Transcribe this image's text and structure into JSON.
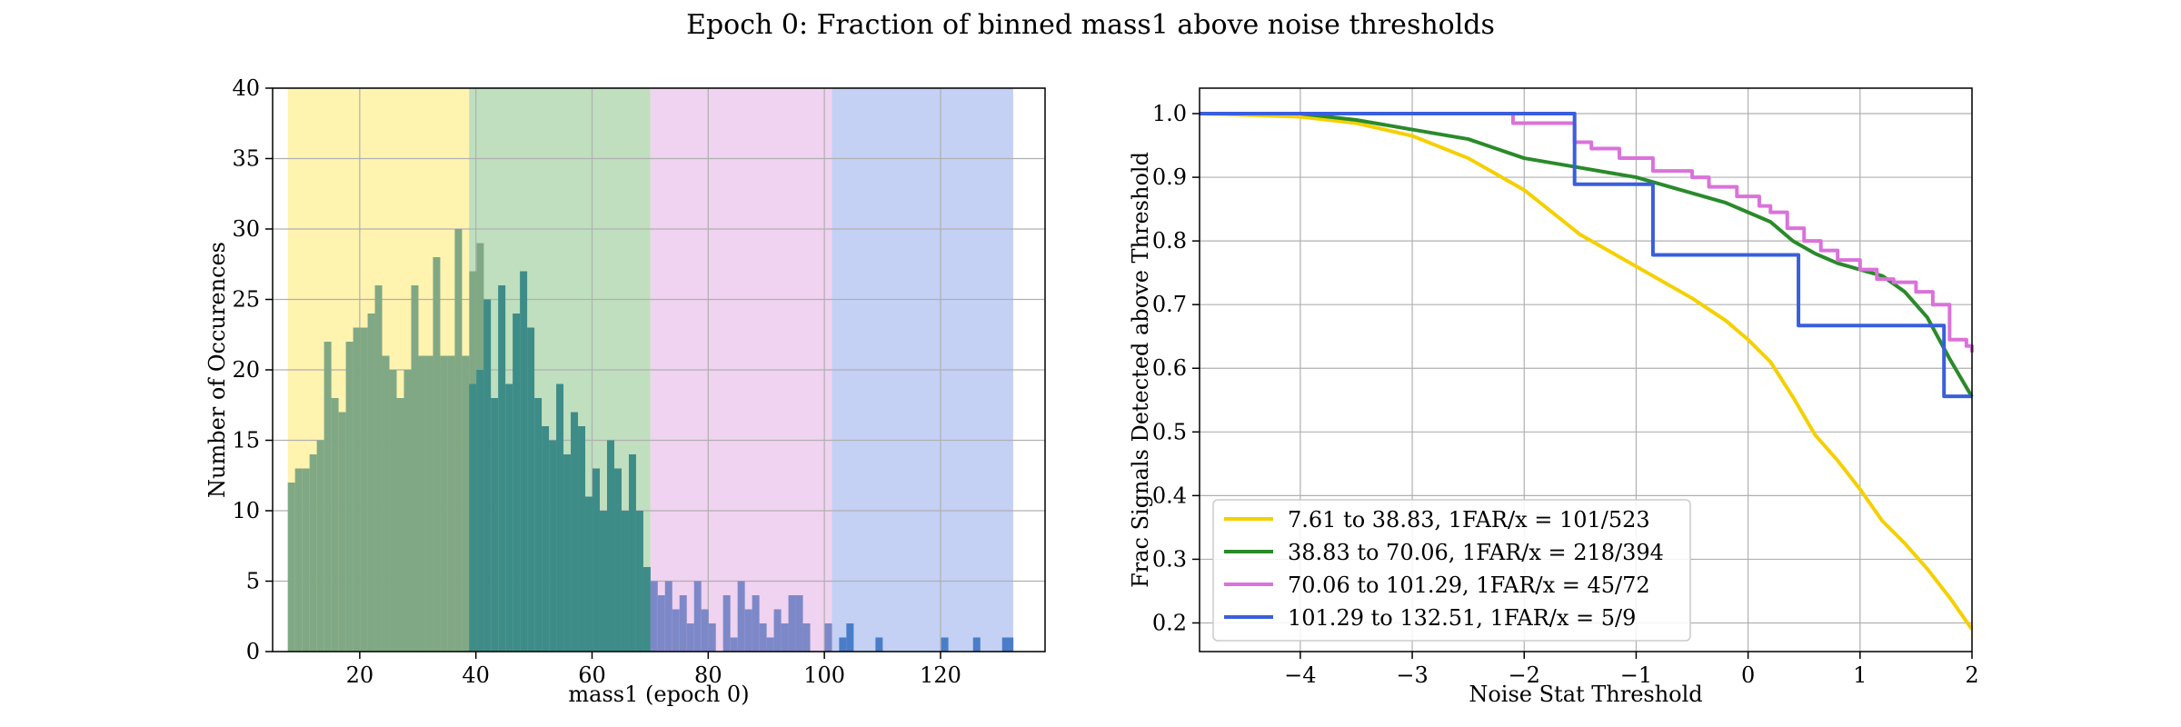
{
  "suptitle": "Epoch 0: Fraction of binned mass1 above noise thresholds",
  "chart_data": [
    {
      "type": "bar",
      "xlabel": "mass1 (epoch 0)",
      "ylabel": "Number of Occurences",
      "xlim": [
        5,
        138
      ],
      "ylim": [
        0,
        40
      ],
      "xticks": [
        20,
        40,
        60,
        80,
        100,
        120
      ],
      "yticks": [
        0,
        5,
        10,
        15,
        20,
        25,
        30,
        35,
        40
      ],
      "grid": true,
      "bin_width": 1.25,
      "bands": [
        {
          "x0": 7.61,
          "x1": 38.83,
          "color": "#fff3b0"
        },
        {
          "x0": 38.83,
          "x1": 70.06,
          "color": "#bfdfbf"
        },
        {
          "x0": 70.06,
          "x1": 101.29,
          "color": "#f0d3f0"
        },
        {
          "x0": 101.29,
          "x1": 132.51,
          "color": "#c4d0f4"
        }
      ],
      "series": [
        {
          "color": "#80a884",
          "x0": 7.61,
          "values": [
            12,
            13,
            13,
            14,
            15,
            22,
            18,
            17,
            22,
            23,
            23,
            24,
            26,
            21,
            20,
            18,
            20,
            26,
            21,
            21,
            28,
            21,
            21,
            30,
            21,
            27,
            29
          ]
        },
        {
          "color": "#3e8c88",
          "x0": 38.83,
          "values": [
            19,
            20,
            25,
            18,
            26,
            19,
            24,
            27,
            23,
            18,
            16,
            15,
            19,
            14,
            17,
            16,
            11,
            13,
            10,
            15,
            13,
            10,
            14,
            10,
            6
          ]
        },
        {
          "color": "#7d88c8",
          "x0": 70.06,
          "values": [
            5,
            4,
            5,
            3,
            4,
            2,
            5,
            3,
            2,
            0,
            4,
            1,
            5,
            3,
            4,
            2,
            1,
            3,
            2,
            4,
            4,
            2,
            0,
            0,
            2
          ]
        },
        {
          "color": "#4a7dc8",
          "x0": 101.29,
          "values": [
            0,
            1,
            2,
            0,
            0,
            0,
            0,
            0,
            0,
            0,
            0,
            0,
            0,
            0,
            0,
            0,
            0,
            0,
            0,
            0,
            0,
            0,
            0,
            0,
            0
          ]
        }
      ],
      "extra_bars": [
        {
          "x": 108.8,
          "value": 1
        },
        {
          "x": 120.1,
          "value": 1
        },
        {
          "x": 125.6,
          "value": 1
        },
        {
          "x": 130.6,
          "value": 1
        },
        {
          "x": 131.3,
          "value": 1
        }
      ]
    },
    {
      "type": "line",
      "xlabel": "Noise Stat Threshold",
      "ylabel": "Frac Signals Detected above Threshold",
      "xlim": [
        -4.9,
        2
      ],
      "ylim": [
        0.155,
        1.04
      ],
      "xticks": [
        -4,
        -3,
        -2,
        -1,
        0,
        1,
        2
      ],
      "xtick_labels": [
        "−4",
        "−3",
        "−2",
        "−1",
        "0",
        "1",
        "2"
      ],
      "yticks": [
        0.2,
        0.3,
        0.4,
        0.5,
        0.6,
        0.7,
        0.8,
        0.9,
        1.0
      ],
      "ytick_labels": [
        "0.2",
        "0.3",
        "0.4",
        "0.5",
        "0.6",
        "0.7",
        "0.8",
        "0.9",
        "1.0"
      ],
      "grid": true,
      "legend": "lower-left",
      "series": [
        {
          "name": "7.61 to 38.83, 1FAR/x = 101/523",
          "color": "#f5d000",
          "step": false,
          "x": [
            -4.9,
            -4.5,
            -4.0,
            -3.5,
            -3.0,
            -2.5,
            -2.0,
            -1.5,
            -1.0,
            -0.5,
            -0.2,
            0.0,
            0.2,
            0.4,
            0.6,
            0.8,
            1.0,
            1.2,
            1.4,
            1.6,
            1.8,
            2.0
          ],
          "y": [
            1.0,
            0.998,
            0.995,
            0.985,
            0.965,
            0.93,
            0.88,
            0.81,
            0.76,
            0.71,
            0.675,
            0.645,
            0.61,
            0.555,
            0.495,
            0.455,
            0.41,
            0.36,
            0.325,
            0.285,
            0.24,
            0.19
          ]
        },
        {
          "name": "38.83 to 70.06, 1FAR/x = 218/394",
          "color": "#2a8a2a",
          "step": false,
          "x": [
            -4.9,
            -4.0,
            -3.5,
            -3.0,
            -2.5,
            -2.0,
            -1.5,
            -1.0,
            -0.5,
            -0.2,
            0.0,
            0.2,
            0.4,
            0.6,
            0.8,
            1.0,
            1.2,
            1.4,
            1.6,
            1.8,
            2.0
          ],
          "y": [
            1.0,
            1.0,
            0.99,
            0.975,
            0.96,
            0.93,
            0.915,
            0.9,
            0.875,
            0.86,
            0.845,
            0.83,
            0.8,
            0.78,
            0.765,
            0.755,
            0.745,
            0.72,
            0.68,
            0.615,
            0.555
          ]
        },
        {
          "name": "70.06 to 101.29, 1FAR/x = 45/72",
          "color": "#da72da",
          "step": true,
          "x": [
            -4.9,
            -2.1,
            -1.55,
            -1.4,
            -1.15,
            -1.0,
            -0.85,
            -0.5,
            -0.35,
            -0.1,
            0.1,
            0.2,
            0.35,
            0.5,
            0.65,
            0.8,
            1.0,
            1.15,
            1.3,
            1.5,
            1.65,
            1.8,
            1.95,
            2.0
          ],
          "y": [
            1.0,
            0.985,
            0.955,
            0.945,
            0.93,
            0.93,
            0.91,
            0.9,
            0.885,
            0.87,
            0.855,
            0.845,
            0.82,
            0.8,
            0.785,
            0.77,
            0.755,
            0.74,
            0.735,
            0.72,
            0.7,
            0.645,
            0.635,
            0.625
          ]
        },
        {
          "name": "101.29 to 132.51, 1FAR/x = 5/9",
          "color": "#3a5fdc",
          "step": true,
          "x": [
            -4.9,
            -1.55,
            -0.85,
            0.45,
            1.75,
            1.95,
            2.0
          ],
          "y": [
            1.0,
            0.889,
            0.778,
            0.667,
            0.556,
            0.556,
            0.556
          ]
        }
      ]
    }
  ]
}
